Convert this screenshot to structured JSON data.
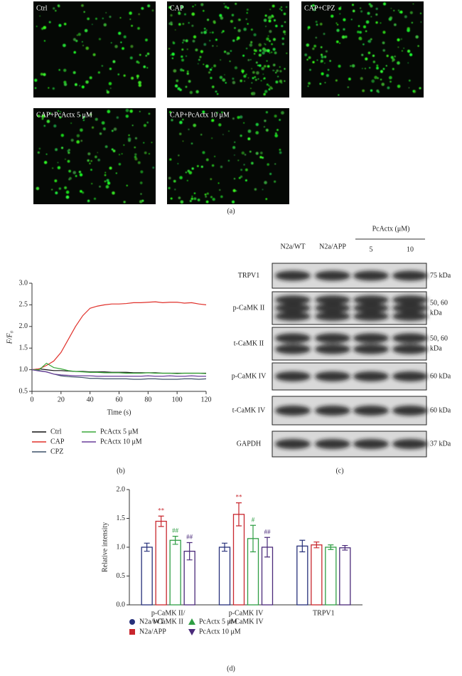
{
  "panel_a": {
    "label": "(a)",
    "images": [
      {
        "label": "Ctrl"
      },
      {
        "label": "CAP"
      },
      {
        "label": "CAP+CPZ"
      },
      {
        "label": "CAP+PcActx 5 μM"
      },
      {
        "label": "CAP+PcActx 10 μM"
      }
    ]
  },
  "panel_c": {
    "label": "(c)",
    "group_label": "PcActx (μM)",
    "lanes": [
      "N2a/WT",
      "N2a/APP",
      "5",
      "10"
    ],
    "rows": [
      {
        "name": "TRPV1",
        "size": [
          "75 kDa"
        ]
      },
      {
        "name": "p-CaMK II",
        "size": [
          "50, 60",
          "kDa"
        ]
      },
      {
        "name": "t-CaMK II",
        "size": [
          "50, 60",
          "kDa"
        ]
      },
      {
        "name": "p-CaMK IV",
        "size": [
          "60 kDa"
        ]
      },
      {
        "name": "t-CaMK IV",
        "size": [
          "60 kDa"
        ]
      },
      {
        "name": "GAPDH",
        "size": [
          "37 kDa"
        ]
      }
    ]
  },
  "chart_data": [
    {
      "type": "line",
      "panel_label": "(b)",
      "xlabel": "Time (s)",
      "ylabel": "F/F₀",
      "x": [
        0,
        5,
        10,
        15,
        20,
        25,
        30,
        35,
        40,
        45,
        50,
        55,
        60,
        65,
        70,
        75,
        80,
        85,
        90,
        95,
        100,
        105,
        110,
        115,
        120
      ],
      "xlim": [
        0,
        120
      ],
      "xticks": [
        0,
        20,
        40,
        60,
        80,
        100,
        120
      ],
      "ylim": [
        0.5,
        3.0
      ],
      "yticks": [
        0.5,
        {
          "value": 1.0,
          "label": "1.0"
        },
        1.5,
        {
          "value": 2.0,
          "label": "2.0"
        },
        2.5,
        {
          "value": 3.0,
          "label": "3.0"
        }
      ],
      "series": [
        {
          "name": "Ctrl",
          "color": "#111111",
          "values": [
            1.0,
            1.02,
            1.0,
            0.98,
            0.98,
            0.97,
            0.96,
            0.96,
            0.95,
            0.95,
            0.95,
            0.94,
            0.94,
            0.94,
            0.93,
            0.93,
            0.93,
            0.93,
            0.92,
            0.92,
            0.92,
            0.92,
            0.92,
            0.92,
            0.92
          ]
        },
        {
          "name": "CAP",
          "color": "#e0302a",
          "values": [
            1.0,
            1.02,
            1.1,
            1.2,
            1.4,
            1.7,
            2.0,
            2.25,
            2.42,
            2.47,
            2.5,
            2.52,
            2.52,
            2.53,
            2.55,
            2.55,
            2.56,
            2.57,
            2.55,
            2.56,
            2.56,
            2.54,
            2.55,
            2.52,
            2.5
          ]
        },
        {
          "name": "CPZ",
          "color": "#3c5068",
          "values": [
            1.0,
            0.98,
            0.95,
            0.9,
            0.86,
            0.84,
            0.83,
            0.82,
            0.8,
            0.8,
            0.79,
            0.79,
            0.79,
            0.79,
            0.78,
            0.78,
            0.79,
            0.79,
            0.78,
            0.78,
            0.78,
            0.79,
            0.79,
            0.78,
            0.79
          ]
        },
        {
          "name": "PcActx 5 μM",
          "color": "#3aa83a",
          "values": [
            1.0,
            1.0,
            1.15,
            1.05,
            1.02,
            0.98,
            0.96,
            0.95,
            0.94,
            0.94,
            0.93,
            0.93,
            0.93,
            0.92,
            0.92,
            0.92,
            0.93,
            0.92,
            0.92,
            0.92,
            0.91,
            0.92,
            0.92,
            0.92,
            0.91
          ]
        },
        {
          "name": "PcActx 10 μM",
          "color": "#6a3d9a",
          "values": [
            1.0,
            0.97,
            0.95,
            0.9,
            0.88,
            0.87,
            0.86,
            0.86,
            0.86,
            0.85,
            0.85,
            0.85,
            0.85,
            0.85,
            0.85,
            0.85,
            0.86,
            0.85,
            0.85,
            0.86,
            0.85,
            0.85,
            0.86,
            0.85,
            0.85
          ]
        }
      ]
    },
    {
      "type": "bar",
      "panel_label": "(d)",
      "ylabel": "Relative intensity",
      "categories": [
        [
          "p-CaMK II/",
          "t-CaMK II"
        ],
        [
          "p-CaMK IV",
          "/t-CaMK IV"
        ],
        [
          "TRPV1"
        ]
      ],
      "ylim": [
        0,
        2.0
      ],
      "yticks": [
        {
          "value": 0,
          "label": "0.0"
        },
        0.5,
        {
          "value": 1.0,
          "label": "1.0"
        },
        1.5,
        {
          "value": 2.0,
          "label": "2.0"
        }
      ],
      "series": [
        {
          "name": "N2a/WT",
          "color": "#27307a",
          "marker": "circle",
          "values": [
            1.0,
            1.0,
            1.02
          ],
          "errors": [
            0.07,
            0.07,
            0.1
          ]
        },
        {
          "name": "N2a/APP",
          "color": "#c8262d",
          "marker": "square",
          "values": [
            1.45,
            1.57,
            1.04
          ],
          "errors": [
            0.09,
            0.2,
            0.05
          ],
          "significance": [
            "**",
            "**",
            null
          ]
        },
        {
          "name": "PcActx 5 μM",
          "color": "#2f9e44",
          "marker": "triangle",
          "values": [
            1.12,
            1.15,
            1.0
          ],
          "errors": [
            0.07,
            0.23,
            0.04
          ],
          "significance": [
            "##",
            "#",
            null
          ]
        },
        {
          "name": "PcActx 10 μM",
          "color": "#4a2a7a",
          "marker": "triangle-down",
          "values": [
            0.93,
            1.0,
            0.99
          ],
          "errors": [
            0.15,
            0.17,
            0.04
          ],
          "significance": [
            "##",
            "##",
            null
          ]
        }
      ]
    }
  ]
}
